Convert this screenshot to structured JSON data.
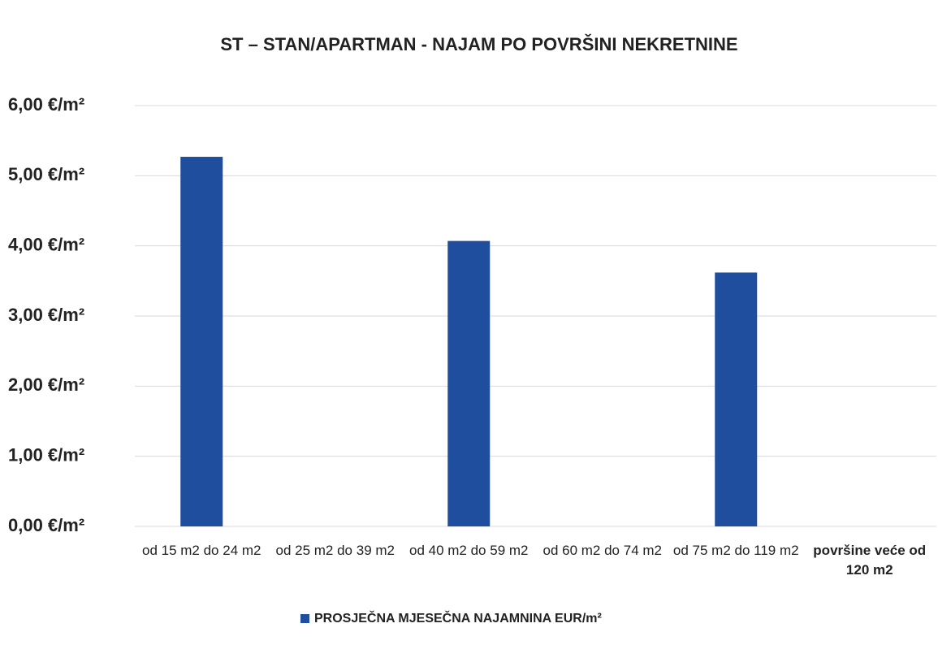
{
  "chart_data": {
    "type": "bar",
    "title": "ST – STAN/APARTMAN - NAJAM PO POVRŠINI NEKRETNINE",
    "categories": [
      "od 15 m2 do 24 m2",
      "od 25 m2 do 39 m2",
      "od 40 m2 do 59 m2",
      "od 60 m2 do 74 m2",
      "od 75 m2 do 119 m2",
      "površine veće od 120 m2"
    ],
    "series": [
      {
        "name": "PROSJEČNA MJESEČNA NAJAMNINA EUR/m²",
        "color": "#1f4e9e",
        "values": [
          5.27,
          null,
          4.07,
          null,
          3.62,
          null
        ]
      }
    ],
    "ylim": [
      0,
      6
    ],
    "yticks": [
      {
        "value": 0,
        "label": "0,00 €/m²"
      },
      {
        "value": 1,
        "label": "1,00 €/m²"
      },
      {
        "value": 2,
        "label": "2,00 €/m²"
      },
      {
        "value": 3,
        "label": "3,00 €/m²"
      },
      {
        "value": 4,
        "label": "4,00 €/m²"
      },
      {
        "value": 5,
        "label": "5,00 €/m²"
      },
      {
        "value": 6,
        "label": "6,00 €/m²"
      }
    ],
    "grid": true,
    "legend": "bottom"
  }
}
